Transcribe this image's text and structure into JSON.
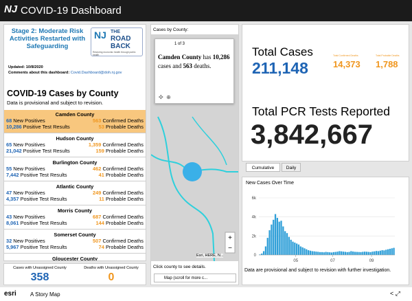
{
  "header": {
    "logo": "NJ",
    "title": "COVID-19 Dashboard"
  },
  "stage": {
    "title": "Stage 2: Moderate Risk Activities Restarted with Safeguarding",
    "logo": [
      "THE",
      "ROAD",
      "BACK"
    ],
    "logo_tagline": "Restoring economic health through public health",
    "updated": "Updated: 10/8/2020",
    "comments_label": "Comments about this dashboard:",
    "comments_email": "Covid.Dashboard@doh.nj.gov"
  },
  "county_list": {
    "title": "COVID-19 Cases by County",
    "subtitle": "Data is provisional and subject to revision.",
    "labels": {
      "new": "New Positives",
      "deaths": "Confirmed Deaths",
      "tests": "Positive Test Results",
      "probable": "Probable Deaths"
    },
    "items": [
      {
        "name": "Camden County",
        "new_positives": "68",
        "confirmed_deaths": "563",
        "positive_tests": "10,286",
        "probable_deaths": "53"
      },
      {
        "name": "Hudson County",
        "new_positives": "65",
        "confirmed_deaths": "1,359",
        "positive_tests": "21,042",
        "probable_deaths": "159"
      },
      {
        "name": "Burlington County",
        "new_positives": "55",
        "confirmed_deaths": "462",
        "positive_tests": "7,442",
        "probable_deaths": "41"
      },
      {
        "name": "Atlantic County",
        "new_positives": "47",
        "confirmed_deaths": "249",
        "positive_tests": "4,357",
        "probable_deaths": "11"
      },
      {
        "name": "Morris County",
        "new_positives": "43",
        "confirmed_deaths": "687",
        "positive_tests": "8,061",
        "probable_deaths": "144"
      },
      {
        "name": "Somerset County",
        "new_positives": "32",
        "confirmed_deaths": "507",
        "positive_tests": "5,967",
        "probable_deaths": "74"
      },
      {
        "name": "Gloucester County"
      }
    ]
  },
  "unassigned": {
    "cases_label": "Cases with Unassigned County",
    "cases": "358",
    "deaths_label": "Deaths with Unassigned County",
    "deaths": "0"
  },
  "map": {
    "title": "Cases by County:",
    "pager": "1 of 3",
    "popup_county": "Camden County",
    "popup_has": "has",
    "popup_cases": "10,286",
    "popup_cases_and": "cases and",
    "popup_deaths": "563",
    "popup_deaths_word": "deaths.",
    "attribution": "Esri, HERE, N...",
    "hint": "Click county to see details.",
    "tab": "Map (scroll for more c..."
  },
  "totals": {
    "cases_label": "Total Cases",
    "cases": "211,148",
    "confirmed_deaths_label": "Total Confirmed Deaths",
    "confirmed_deaths": "14,373",
    "probable_deaths_label": "Total Probable Deaths",
    "probable_deaths": "1,788",
    "pcr_label": "Total PCR Tests Reported",
    "pcr": "3,842,667"
  },
  "tabs": [
    "Cumulative",
    "Daily"
  ],
  "chart_data": {
    "type": "bar",
    "title": "New Cases Over Time",
    "color": "#2f9fd8",
    "values": [
      50,
      150,
      400,
      900,
      1800,
      2600,
      3200,
      3700,
      4300,
      3900,
      3500,
      3600,
      3000,
      2500,
      2300,
      1900,
      1600,
      1400,
      1300,
      1200,
      1100,
      900,
      800,
      700,
      600,
      500,
      450,
      400,
      380,
      350,
      330,
      300,
      300,
      280,
      320,
      300,
      280,
      260,
      300,
      320,
      350,
      400,
      380,
      350,
      330,
      300,
      320,
      400,
      360,
      330,
      320,
      310,
      300,
      330,
      350,
      340,
      320,
      300,
      350,
      380,
      420,
      400,
      450,
      500,
      480,
      550,
      600,
      650,
      700,
      750
    ],
    "xlim": [
      0,
      70
    ],
    "xticks": [
      {
        "value": 19,
        "label": "05"
      },
      {
        "value": 38,
        "label": "07"
      },
      {
        "value": 58,
        "label": "09"
      }
    ],
    "ylim": [
      0,
      6000
    ],
    "yticks": [
      0,
      {
        "value": 2000,
        "label": "2k"
      },
      {
        "value": 4000,
        "label": "4k"
      },
      {
        "value": 6000,
        "label": "6k"
      }
    ],
    "grid": true
  },
  "chart_note": "Data are provisional and subject to revision with further investigation.",
  "footer": {
    "brand": "esri",
    "story": "A Story Map"
  }
}
